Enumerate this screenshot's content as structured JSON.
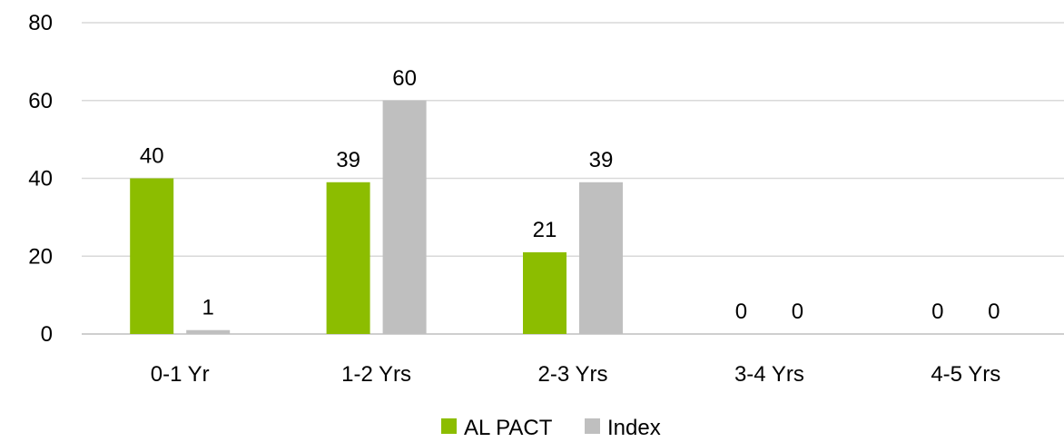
{
  "chart_data": {
    "type": "bar",
    "categories": [
      "0-1 Yr",
      "1-2 Yrs",
      "2-3 Yrs",
      "3-4 Yrs",
      "4-5 Yrs"
    ],
    "series": [
      {
        "name": "AL PACT",
        "values": [
          40,
          39,
          21,
          0,
          0
        ],
        "color": "#8cbd00"
      },
      {
        "name": "Index",
        "values": [
          1,
          60,
          39,
          0,
          0
        ],
        "color": "#bfbfbf"
      }
    ],
    "yticks": [
      "0",
      "20",
      "40",
      "60",
      "80"
    ],
    "ylim": [
      0,
      80
    ],
    "grid": true,
    "legend": "bottom-center",
    "data_labels": [
      [
        "40",
        "39",
        "21",
        "0",
        "0"
      ],
      [
        "1",
        "60",
        "39",
        "0",
        "0"
      ]
    ]
  }
}
